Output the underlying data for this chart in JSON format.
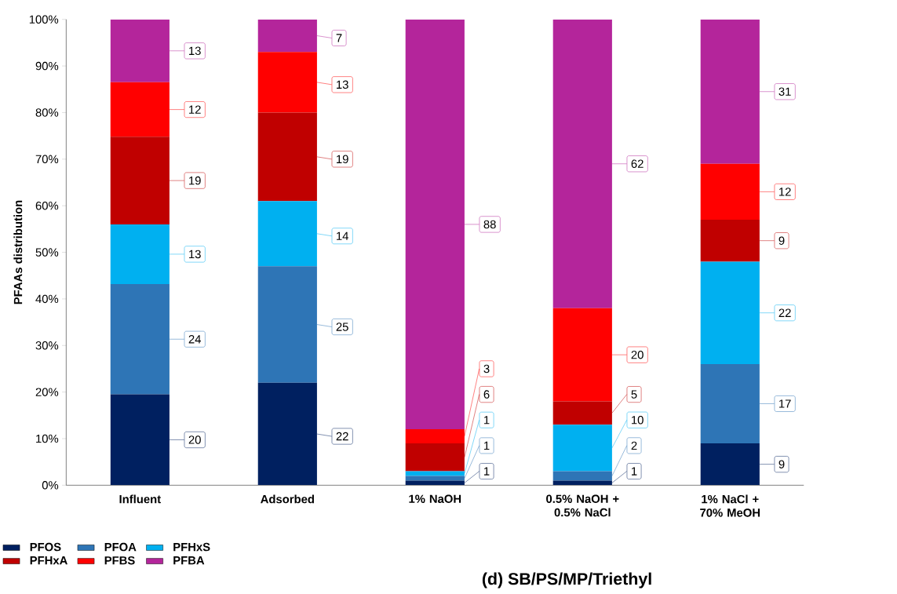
{
  "chart_data": {
    "type": "bar",
    "stacked": true,
    "title": "(d) SB/PS/MP/Triethyl",
    "ylabel": "PFAAs distribution",
    "categories": [
      "Influent",
      "Adsorbed",
      "1% NaOH",
      "0.5% NaOH + 0.5% NaCl",
      "1% NaCl + 70% MeOH"
    ],
    "series": [
      {
        "name": "PFOS",
        "color": "#002060",
        "values": [
          19.5,
          22,
          1,
          1,
          9
        ],
        "value_labels": [
          "20",
          "22",
          "1",
          "1",
          "9"
        ]
      },
      {
        "name": "PFOA",
        "color": "#2e75b6",
        "values": [
          23.7,
          25,
          1,
          2,
          17
        ],
        "value_labels": [
          "24",
          "25",
          "1",
          "2",
          "17"
        ]
      },
      {
        "name": "PFHxS",
        "color": "#00b0f0",
        "values": [
          12.8,
          14,
          1,
          10,
          22
        ],
        "value_labels": [
          "13",
          "14",
          "1",
          "10",
          "22"
        ]
      },
      {
        "name": "PFHxA",
        "color": "#c00000",
        "values": [
          18.8,
          19,
          6,
          5,
          9
        ],
        "value_labels": [
          "19",
          "19",
          "6",
          "5",
          "9"
        ]
      },
      {
        "name": "PFBS",
        "color": "#ff0000",
        "values": [
          11.7,
          13,
          3,
          20,
          12
        ],
        "value_labels": [
          "12",
          "13",
          "3",
          "20",
          "12"
        ]
      },
      {
        "name": "PFBA",
        "color": "#b4259b",
        "values": [
          13.5,
          7,
          88,
          62,
          31
        ],
        "value_labels": [
          "13",
          "7",
          "88",
          "62",
          "31"
        ]
      }
    ],
    "ylim": [
      0,
      100
    ],
    "yticks": [
      {
        "value": 0,
        "label": "0%"
      },
      {
        "value": 10,
        "label": "10%"
      },
      {
        "value": 20,
        "label": "20%"
      },
      {
        "value": 30,
        "label": "30%"
      },
      {
        "value": 40,
        "label": "40%"
      },
      {
        "value": 50,
        "label": "50%"
      },
      {
        "value": 60,
        "label": "60%"
      },
      {
        "value": 70,
        "label": "70%"
      },
      {
        "value": 80,
        "label": "80%"
      },
      {
        "value": 90,
        "label": "90%"
      },
      {
        "value": 100,
        "label": "100%"
      }
    ],
    "grid": false,
    "legend": "bottom left"
  }
}
